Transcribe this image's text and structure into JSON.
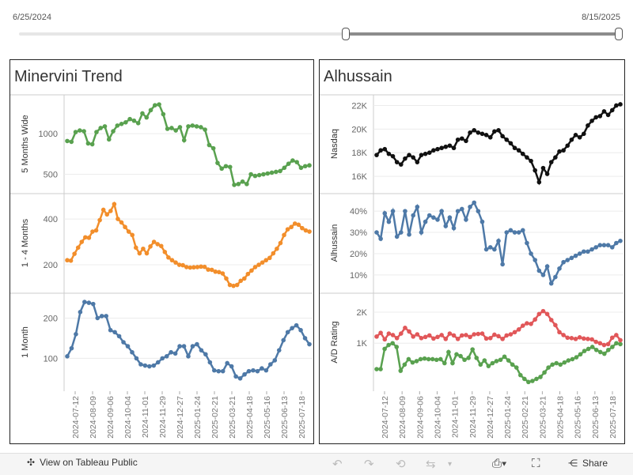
{
  "range": {
    "start": "6/25/2024",
    "end": "8/15/2025",
    "selected_fraction": [
      0.55,
      1.0
    ]
  },
  "toolbar": {
    "view_label": "View on Tableau Public",
    "share_label": "Share"
  },
  "colors": {
    "green": "#59a14f",
    "orange": "#f28e2b",
    "blue": "#4e79a7",
    "black": "#111111",
    "red": "#e15759",
    "grid": "#ececec"
  },
  "chart_data": [
    {
      "title": "Minervini Trend",
      "type": "line",
      "x_ticks": [
        "2024-07-12",
        "2024-08-09",
        "2024-09-06",
        "2024-10-04",
        "2024-11-01",
        "2024-11-29",
        "2024-12-27",
        "2025-01-24",
        "2025-02-21",
        "2025-03-21",
        "2025-04-18",
        "2025-05-16",
        "2025-06-13",
        "2025-07-18"
      ],
      "panels": [
        {
          "ylabel": "5 Months Wide",
          "ylim": [
            330,
            1420
          ],
          "yticks": [
            500,
            1000
          ],
          "ytick_labels": [
            "500",
            "1000"
          ],
          "color": "green",
          "values": [
            910,
            900,
            1020,
            1040,
            1030,
            880,
            870,
            1020,
            1070,
            1090,
            930,
            1030,
            1100,
            1120,
            1140,
            1180,
            1160,
            1130,
            1250,
            1200,
            1290,
            1350,
            1360,
            1240,
            1060,
            1070,
            1040,
            1080,
            920,
            1090,
            1100,
            1090,
            1080,
            1050,
            860,
            820,
            640,
            570,
            600,
            590,
            370,
            380,
            410,
            380,
            500,
            480,
            490,
            500,
            510,
            520,
            530,
            540,
            580,
            630,
            670,
            650,
            580,
            600,
            610
          ]
        },
        {
          "ylabel": "1 - 4 Months",
          "ylim": [
            100,
            490
          ],
          "yticks": [
            200,
            400
          ],
          "ytick_labels": [
            "200",
            "400"
          ],
          "color": "orange",
          "values": [
            220,
            218,
            248,
            275,
            300,
            320,
            318,
            345,
            350,
            395,
            440,
            420,
            435,
            465,
            400,
            385,
            365,
            345,
            330,
            275,
            250,
            270,
            250,
            280,
            300,
            290,
            282,
            256,
            232,
            220,
            210,
            200,
            198,
            190,
            188,
            189,
            190,
            192,
            191,
            179,
            178,
            170,
            168,
            162,
            140,
            112,
            108,
            112,
            130,
            140,
            160,
            175,
            190,
            200,
            210,
            220,
            230,
            250,
            270,
            295,
            330,
            355,
            365,
            380,
            375,
            360,
            350,
            345
          ]
        },
        {
          "ylabel": "1 Month",
          "ylim": [
            30,
            250
          ],
          "yticks": [
            100,
            200
          ],
          "ytick_labels": [
            "100",
            "200"
          ],
          "color": "blue",
          "values": [
            105,
            125,
            160,
            215,
            240,
            238,
            235,
            200,
            205,
            205,
            170,
            165,
            155,
            140,
            130,
            115,
            100,
            85,
            82,
            80,
            82,
            90,
            100,
            105,
            115,
            112,
            130,
            130,
            105,
            130,
            135,
            120,
            110,
            90,
            70,
            68,
            68,
            88,
            80,
            55,
            50,
            60,
            68,
            70,
            68,
            75,
            70,
            85,
            95,
            120,
            145,
            165,
            175,
            182,
            170,
            150,
            135
          ]
        }
      ]
    },
    {
      "title": "Alhussain",
      "type": "line",
      "x_ticks": [
        "2024-07-12",
        "2024-08-09",
        "2024-09-06",
        "2024-10-04",
        "2024-11-01",
        "2024-11-29",
        "2024-12-27",
        "2025-01-24",
        "2025-02-21",
        "2025-03-21",
        "2025-04-18",
        "2025-05-16",
        "2025-06-13",
        "2025-07-18"
      ],
      "panels": [
        {
          "ylabel": "Nasdaq",
          "ylim": [
            15000,
            22500
          ],
          "yticks": [
            16000,
            18000,
            20000,
            22000
          ],
          "ytick_labels": [
            "16K",
            "18K",
            "20K",
            "22K"
          ],
          "series": [
            {
              "color": "black",
              "values": [
                17800,
                18200,
                18300,
                17900,
                17700,
                17200,
                17000,
                17500,
                17800,
                17600,
                17200,
                17800,
                17900,
                18000,
                18200,
                18300,
                18400,
                18500,
                18600,
                18400,
                19100,
                19200,
                19000,
                19700,
                19900,
                19700,
                19600,
                19500,
                19300,
                19800,
                19900,
                19400,
                19100,
                18800,
                18400,
                18200,
                17900,
                17600,
                17300,
                16500,
                15500,
                16700,
                16200,
                17200,
                17600,
                18100,
                18200,
                18600,
                19100,
                19500,
                19300,
                19600,
                20300,
                20700,
                21000,
                21100,
                21500,
                21200,
                21600,
                22000,
                22100
              ]
            }
          ]
        },
        {
          "ylabel": "Alhussain",
          "ylim": [
            4,
            46
          ],
          "yticks": [
            10,
            20,
            30,
            40
          ],
          "ytick_labels": [
            "10%",
            "20%",
            "30%",
            "40%"
          ],
          "series": [
            {
              "color": "blue",
              "values": [
                30,
                27,
                39,
                35,
                40,
                28,
                30,
                40,
                29,
                38,
                42,
                30,
                35,
                38,
                37,
                36,
                40,
                33,
                37,
                32,
                40,
                41,
                36,
                42,
                44,
                40,
                35,
                22,
                23,
                22,
                26,
                15,
                30,
                31,
                30,
                30,
                31,
                25,
                20,
                17,
                12,
                10,
                14,
                6,
                9,
                13,
                16,
                17,
                18,
                19,
                20,
                21,
                21,
                22,
                23,
                24,
                24,
                24,
                23,
                25,
                26
              ]
            }
          ]
        },
        {
          "ylabel": "A/D Rating",
          "ylim": [
            380,
            2750
          ],
          "yticks": [
            1000,
            2000
          ],
          "ytick_labels": [
            "1K",
            "2K"
          ],
          "log": true,
          "series": [
            {
              "color": "green",
              "values": [
                560,
                560,
                880,
                960,
                1000,
                920,
                540,
                620,
                700,
                650,
                670,
                700,
                710,
                700,
                700,
                690,
                700,
                640,
                820,
                640,
                780,
                750,
                690,
                720,
                870,
                720,
                620,
                680,
                600,
                640,
                670,
                690,
                740,
                680,
                620,
                580,
                490,
                450,
                420,
                430,
                450,
                470,
                520,
                580,
                620,
                640,
                620,
                650,
                680,
                700,
                730,
                780,
                840,
                880,
                920,
                860,
                820,
                790,
                860,
                920,
                1000,
                980
              ]
            },
            {
              "color": "red",
              "values": [
                1160,
                1260,
                1090,
                1240,
                1200,
                1120,
                1240,
                1410,
                1300,
                1160,
                1220,
                1120,
                1150,
                1190,
                1110,
                1150,
                1200,
                1100,
                1240,
                1190,
                1100,
                1190,
                1200,
                1150,
                1220,
                1230,
                1240,
                1110,
                1120,
                1210,
                1170,
                1100,
                1190,
                1220,
                1280,
                1360,
                1480,
                1560,
                1540,
                1700,
                1920,
                2050,
                1920,
                1680,
                1500,
                1280,
                1200,
                1130,
                1120,
                1100,
                1140,
                1110,
                1100,
                1090,
                1030,
                1000,
                960,
                980,
                1130,
                1200,
                1070
              ]
            }
          ]
        }
      ]
    }
  ]
}
